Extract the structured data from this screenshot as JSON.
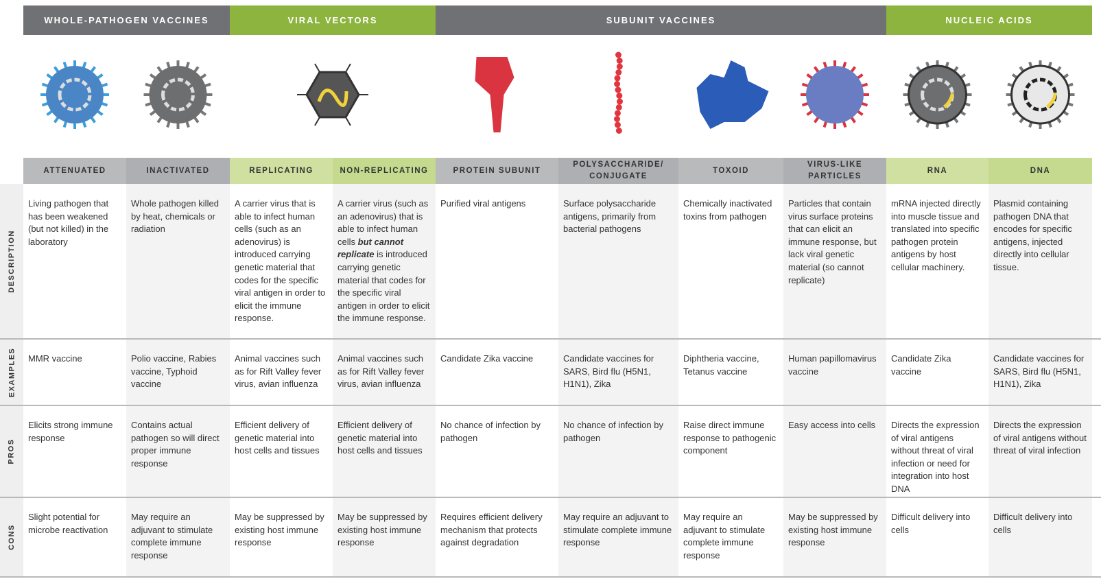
{
  "row_labels": {
    "description": "DESCRIPTION",
    "examples": "EXAMPLES",
    "pros": "PROS",
    "cons": "CONS"
  },
  "groups": [
    {
      "title": "WHOLE-PATHOGEN VACCINES",
      "columns": [
        {
          "header": "ATTENUATED",
          "description": "Living pathogen that has been weakened (but not killed) in the laboratory",
          "examples": "MMR vaccine",
          "pros": "Elicits strong immune response",
          "cons": "Slight potential for microbe reactivation"
        },
        {
          "header": "INACTIVATED",
          "description": "Whole pathogen killed by heat, chemicals or radiation",
          "examples": "Polio vaccine, Rabies vaccine, Typhoid vaccine",
          "pros": "Contains actual pathogen so will direct proper immune response",
          "cons": "May require an adjuvant to stimulate complete immune response"
        }
      ]
    },
    {
      "title": "VIRAL VECTORS",
      "columns": [
        {
          "header": "REPLICATING",
          "description": "A carrier virus that is able to infect human cells (such as an adenovirus) is introduced carrying genetic material that codes for the specific viral antigen in order to elicit the immune response.",
          "examples": "Animal vaccines such as for Rift Valley fever virus, avian influenza",
          "pros": "Efficient delivery of genetic material into host cells and tissues",
          "cons": "May be suppressed by existing host immune response"
        },
        {
          "header": "NON-REPLICATING",
          "description": [
            {
              "text": "A carrier virus (such as an adenovirus) that is able to infect human cells ",
              "emphasis": false
            },
            {
              "text": "but cannot replicate",
              "emphasis": true
            },
            {
              "text": " is introduced carrying genetic material that codes for the specific viral antigen in order to elicit the immune response.",
              "emphasis": false
            }
          ],
          "examples": "Animal vaccines such as for Rift Valley fever virus, avian influenza",
          "pros": "Efficient delivery of genetic material into host cells and tissues",
          "cons": "May be suppressed by existing host immune response"
        }
      ]
    },
    {
      "title": "SUBUNIT VACCINES",
      "columns": [
        {
          "header": "PROTEIN SUBUNIT",
          "description": "Purified viral antigens",
          "examples": "Candidate Zika vaccine",
          "pros": "No chance of infection by pathogen",
          "cons": "Requires efficient delivery mechanism that protects against degradation"
        },
        {
          "header": "POLYSACCHARIDE/ CONJUGATE",
          "description": "Surface polysaccharide antigens, primarily from bacterial pathogens",
          "examples": "Candidate vaccines for SARS, Bird flu (H5N1, H1N1), Zika",
          "pros": "No chance of infection by pathogen",
          "cons": "May require an adjuvant to stimulate complete immune response"
        },
        {
          "header": "TOXOID",
          "description": "Chemically inactivated toxins from pathogen",
          "examples": "Diphtheria vaccine, Tetanus vaccine",
          "pros": "Raise direct immune response to pathogenic component",
          "cons": "May require an adjuvant to stimulate complete immune response"
        },
        {
          "header": "VIRUS-LIKE PARTICLES",
          "description": "Particles that contain virus surface proteins that can elicit an immune response, but lack viral genetic material (so cannot replicate)",
          "examples": "Human papillomavirus vaccine",
          "pros": "Easy access into cells",
          "cons": "May be suppressed by existing host immune response"
        }
      ]
    },
    {
      "title": "NUCLEIC ACIDS",
      "columns": [
        {
          "header": "RNA",
          "description": "mRNA injected directly into muscle tissue and translated into specific pathogen protein antigens by host cellular machinery.",
          "examples": "Candidate Zika vaccine",
          "pros": "Directs the expression of viral antigens without threat of viral infection or need for integration into host DNA",
          "cons": "Difficult delivery into cells"
        },
        {
          "header": "DNA",
          "description": "Plasmid containing pathogen DNA that encodes for specific antigens, injected directly into cellular tissue.",
          "examples": "Candidate vaccines for SARS, Bird flu (H5N1, H1N1), Zika",
          "pros": "Directs the expression of viral antigens without threat of viral infection",
          "cons": "Difficult delivery into cells"
        }
      ]
    }
  ]
}
